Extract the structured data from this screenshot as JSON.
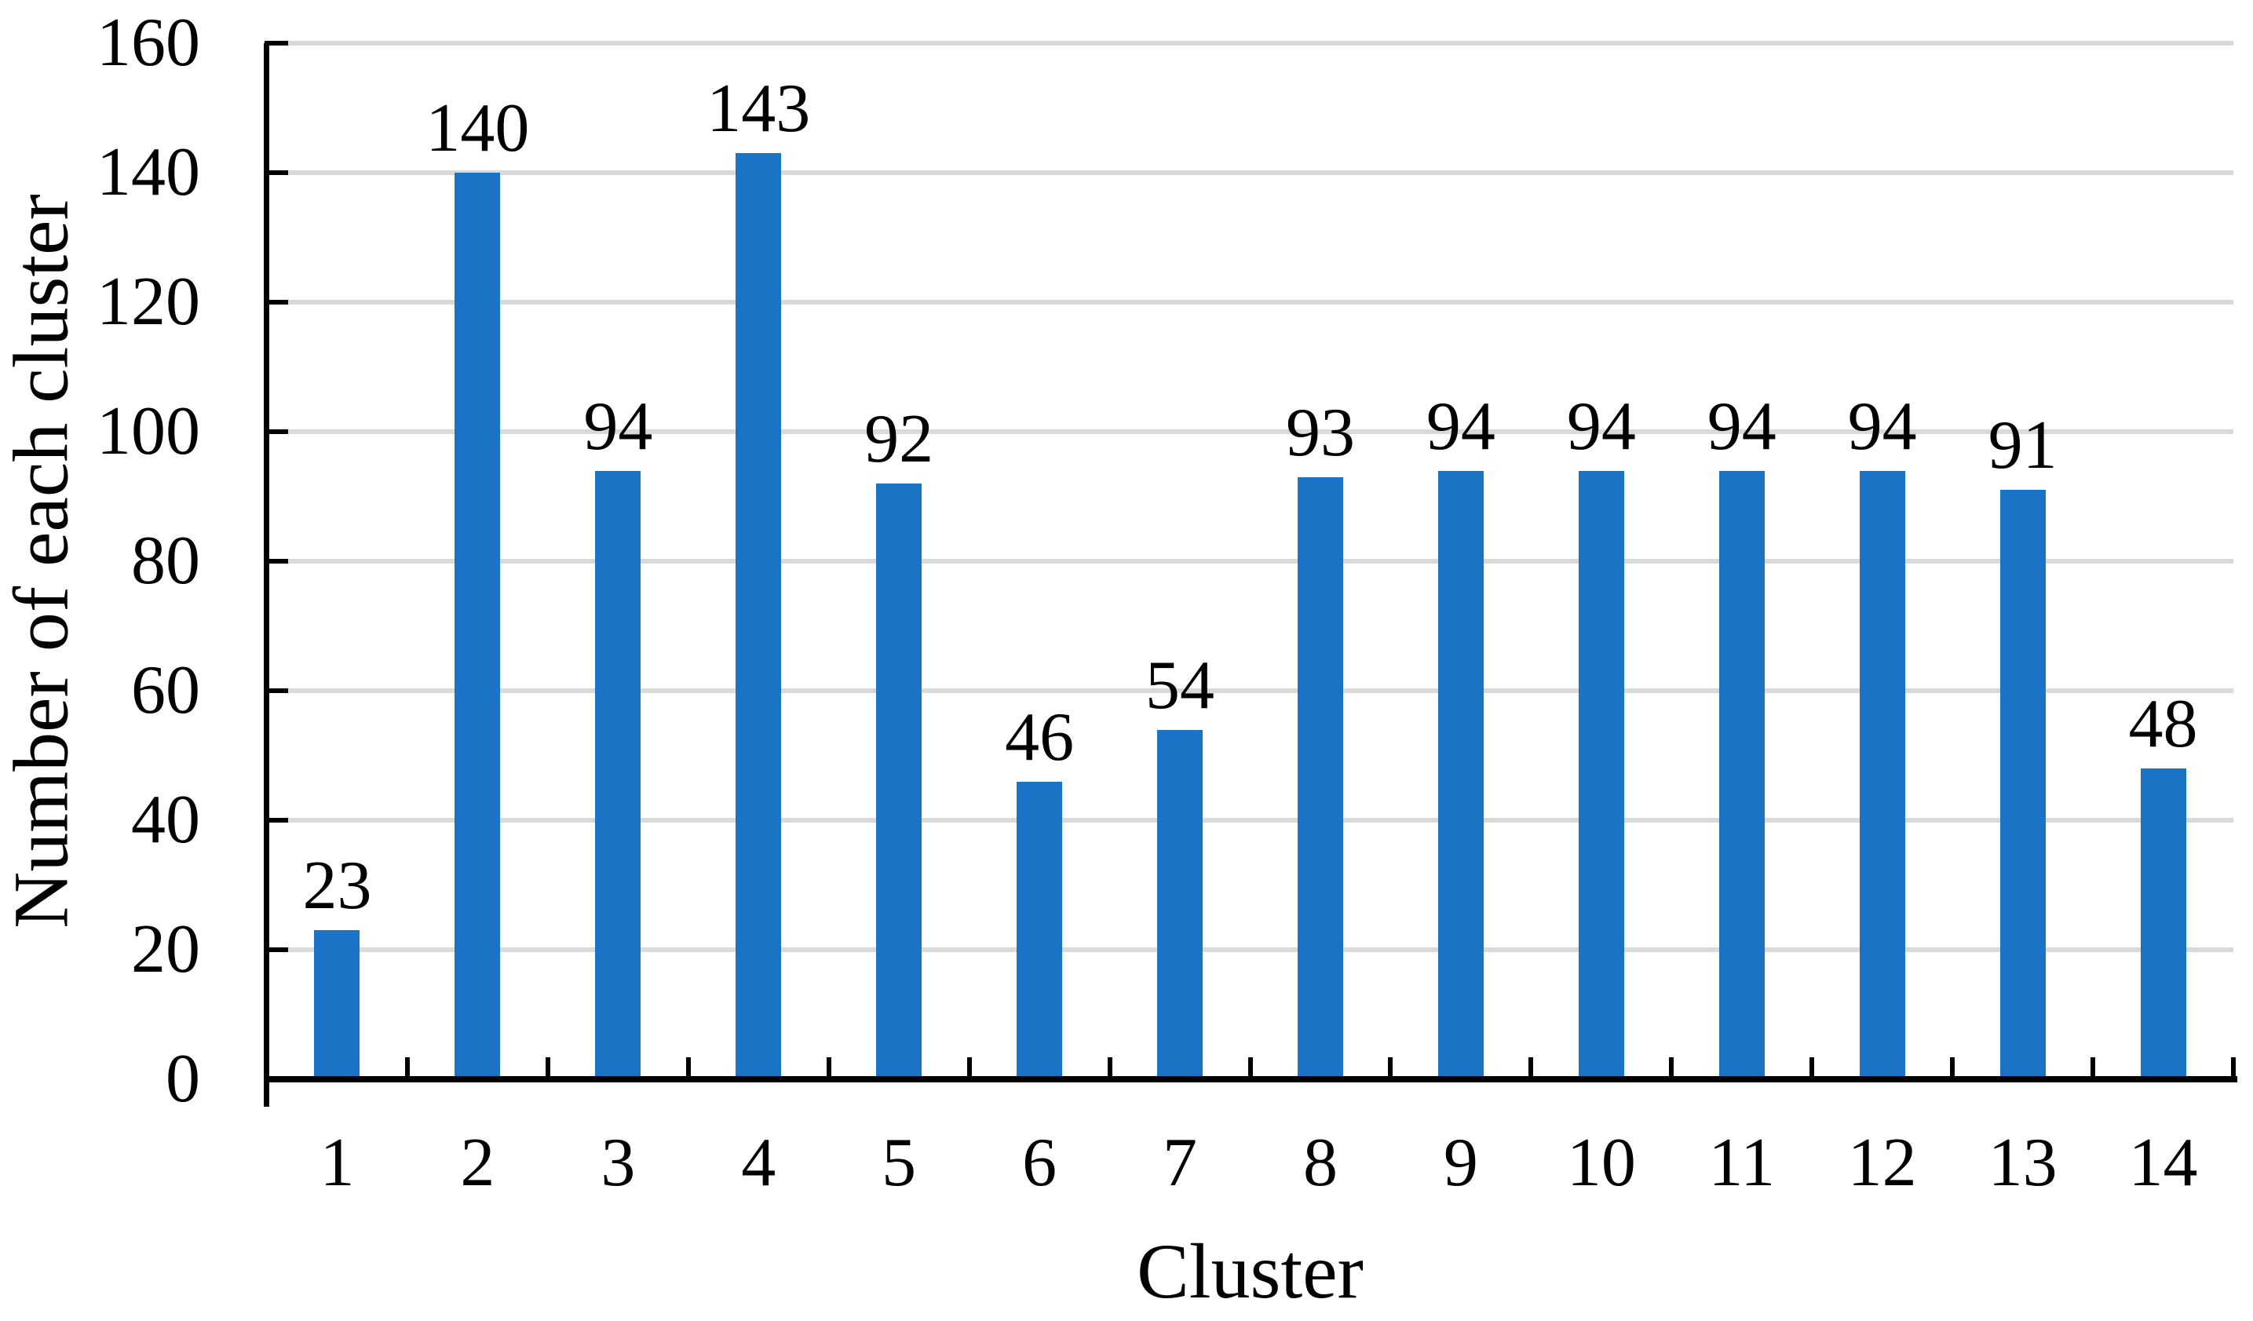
{
  "chart_data": {
    "type": "bar",
    "title": "",
    "categories": [
      "1",
      "2",
      "3",
      "4",
      "5",
      "6",
      "7",
      "8",
      "9",
      "10",
      "11",
      "12",
      "13",
      "14"
    ],
    "values": [
      23,
      140,
      94,
      143,
      92,
      46,
      54,
      93,
      94,
      94,
      94,
      94,
      91,
      48
    ],
    "data_labels": [
      "23",
      "140",
      "94",
      "143",
      "92",
      "46",
      "54",
      "93",
      "94",
      "94",
      "94",
      "94",
      "91",
      "48"
    ],
    "xlabel": "Cluster",
    "ylabel": "Number of each cluster",
    "ylim": [
      0,
      160
    ],
    "yticks": [
      0,
      20,
      40,
      60,
      80,
      100,
      120,
      140,
      160
    ],
    "grid": true,
    "legend": false,
    "tick_style": "inside",
    "bar_color": "#1B73C6",
    "gridline_color": "#D9D9D9",
    "axis_color": "#000000",
    "text_color": "#000000",
    "background": "#FFFFFF"
  }
}
